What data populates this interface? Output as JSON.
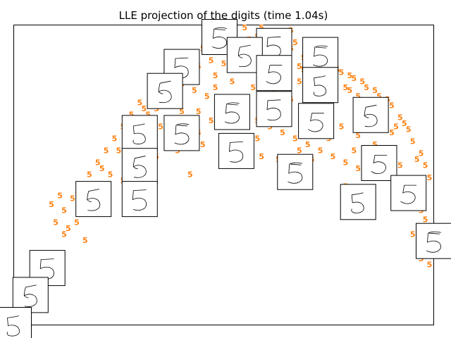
{
  "chart_data": {
    "type": "scatter",
    "title": "LLE projection of the digits (time 1.04s)",
    "xlabel": "",
    "ylabel": "",
    "xlim": [
      0,
      1
    ],
    "ylim": [
      0,
      1
    ],
    "grid": false,
    "axes_ticks": false,
    "marker": "text",
    "marker_label": "5",
    "marker_color": "#ff7f0e",
    "series": [
      {
        "points": [
          [
            0.49,
            0.98
          ],
          [
            0.52,
            0.97
          ],
          [
            0.55,
            0.99
          ],
          [
            0.58,
            0.96
          ],
          [
            0.61,
            0.97
          ],
          [
            0.64,
            0.95
          ],
          [
            0.67,
            0.94
          ],
          [
            0.51,
            0.94
          ],
          [
            0.54,
            0.93
          ],
          [
            0.57,
            0.92
          ],
          [
            0.6,
            0.91
          ],
          [
            0.63,
            0.9
          ],
          [
            0.66,
            0.92
          ],
          [
            0.69,
            0.89
          ],
          [
            0.72,
            0.88
          ],
          [
            0.7,
            0.91
          ],
          [
            0.75,
            0.86
          ],
          [
            0.78,
            0.84
          ],
          [
            0.81,
            0.82
          ],
          [
            0.84,
            0.79
          ],
          [
            0.87,
            0.76
          ],
          [
            0.9,
            0.73
          ],
          [
            0.92,
            0.69
          ],
          [
            0.94,
            0.65
          ],
          [
            0.95,
            0.61
          ],
          [
            0.97,
            0.57
          ],
          [
            0.98,
            0.53
          ],
          [
            0.99,
            0.49
          ],
          [
            0.96,
            0.55
          ],
          [
            0.93,
            0.67
          ],
          [
            0.89,
            0.75
          ],
          [
            0.86,
            0.78
          ],
          [
            0.83,
            0.81
          ],
          [
            0.8,
            0.83
          ],
          [
            0.77,
            0.85
          ],
          [
            0.74,
            0.87
          ],
          [
            0.45,
            0.92
          ],
          [
            0.42,
            0.89
          ],
          [
            0.47,
            0.88
          ],
          [
            0.5,
            0.87
          ],
          [
            0.53,
            0.86
          ],
          [
            0.56,
            0.85
          ],
          [
            0.59,
            0.84
          ],
          [
            0.62,
            0.83
          ],
          [
            0.65,
            0.82
          ],
          [
            0.68,
            0.81
          ],
          [
            0.71,
            0.8
          ],
          [
            0.73,
            0.83
          ],
          [
            0.76,
            0.8
          ],
          [
            0.79,
            0.79
          ],
          [
            0.82,
            0.76
          ],
          [
            0.85,
            0.73
          ],
          [
            0.88,
            0.7
          ],
          [
            0.91,
            0.66
          ],
          [
            0.38,
            0.85
          ],
          [
            0.35,
            0.82
          ],
          [
            0.4,
            0.8
          ],
          [
            0.43,
            0.78
          ],
          [
            0.46,
            0.76
          ],
          [
            0.49,
            0.74
          ],
          [
            0.52,
            0.72
          ],
          [
            0.55,
            0.7
          ],
          [
            0.58,
            0.68
          ],
          [
            0.61,
            0.66
          ],
          [
            0.64,
            0.64
          ],
          [
            0.67,
            0.62
          ],
          [
            0.7,
            0.6
          ],
          [
            0.73,
            0.58
          ],
          [
            0.76,
            0.56
          ],
          [
            0.79,
            0.54
          ],
          [
            0.82,
            0.52
          ],
          [
            0.85,
            0.5
          ],
          [
            0.33,
            0.78
          ],
          [
            0.3,
            0.74
          ],
          [
            0.32,
            0.7
          ],
          [
            0.35,
            0.66
          ],
          [
            0.38,
            0.62
          ],
          [
            0.41,
            0.6
          ],
          [
            0.44,
            0.64
          ],
          [
            0.47,
            0.68
          ],
          [
            0.5,
            0.66
          ],
          [
            0.53,
            0.62
          ],
          [
            0.56,
            0.58
          ],
          [
            0.59,
            0.56
          ],
          [
            0.28,
            0.7
          ],
          [
            0.26,
            0.66
          ],
          [
            0.24,
            0.62
          ],
          [
            0.22,
            0.58
          ],
          [
            0.2,
            0.54
          ],
          [
            0.18,
            0.5
          ],
          [
            0.16,
            0.46
          ],
          [
            0.14,
            0.42
          ],
          [
            0.12,
            0.38
          ],
          [
            0.1,
            0.34
          ],
          [
            0.17,
            0.44
          ],
          [
            0.21,
            0.52
          ],
          [
            0.25,
            0.58
          ],
          [
            0.29,
            0.64
          ],
          [
            0.31,
            0.72
          ],
          [
            0.36,
            0.76
          ],
          [
            0.4,
            0.71
          ],
          [
            0.44,
            0.71
          ],
          [
            0.48,
            0.79
          ],
          [
            0.52,
            0.81
          ],
          [
            0.57,
            0.79
          ],
          [
            0.62,
            0.77
          ],
          [
            0.66,
            0.75
          ],
          [
            0.7,
            0.71
          ],
          [
            0.74,
            0.69
          ],
          [
            0.78,
            0.66
          ],
          [
            0.82,
            0.63
          ],
          [
            0.86,
            0.6
          ],
          [
            0.89,
            0.56
          ],
          [
            0.92,
            0.53
          ],
          [
            0.63,
            0.55
          ],
          [
            0.71,
            0.55
          ],
          [
            0.79,
            0.46
          ],
          [
            0.84,
            0.44
          ],
          [
            0.93,
            0.44
          ],
          [
            0.94,
            0.4
          ],
          [
            0.97,
            0.38
          ],
          [
            0.98,
            0.35
          ],
          [
            0.95,
            0.3
          ],
          [
            0.97,
            0.22
          ],
          [
            0.99,
            0.2
          ],
          [
            0.88,
            0.5
          ],
          [
            0.91,
            0.47
          ],
          [
            0.54,
            0.56
          ],
          [
            0.42,
            0.5
          ],
          [
            0.3,
            0.54
          ],
          [
            0.26,
            0.48
          ],
          [
            0.09,
            0.4
          ],
          [
            0.11,
            0.43
          ],
          [
            0.12,
            0.3
          ],
          [
            0.15,
            0.34
          ],
          [
            0.17,
            0.28
          ],
          [
            0.16,
            0.46
          ],
          [
            0.06,
            0.19
          ],
          [
            0.07,
            0.22
          ],
          [
            0.13,
            0.32
          ],
          [
            0.19,
            0.43
          ],
          [
            0.23,
            0.5
          ],
          [
            0.27,
            0.56
          ],
          [
            0.34,
            0.56
          ],
          [
            0.39,
            0.58
          ],
          [
            0.45,
            0.6
          ],
          [
            0.58,
            0.62
          ],
          [
            0.68,
            0.58
          ],
          [
            0.75,
            0.62
          ],
          [
            0.81,
            0.58
          ],
          [
            0.56,
            0.95
          ],
          [
            0.6,
            0.93
          ],
          [
            0.63,
            0.96
          ],
          [
            0.66,
            0.98
          ],
          [
            0.59,
            0.99
          ],
          [
            0.68,
            0.86
          ],
          [
            0.72,
            0.84
          ],
          [
            0.76,
            0.82
          ],
          [
            0.8,
            0.78
          ],
          [
            0.83,
            0.74
          ],
          [
            0.87,
            0.68
          ],
          [
            0.9,
            0.64
          ],
          [
            0.53,
            0.89
          ],
          [
            0.57,
            0.88
          ],
          [
            0.61,
            0.87
          ],
          [
            0.65,
            0.88
          ],
          [
            0.69,
            0.85
          ],
          [
            0.48,
            0.83
          ],
          [
            0.44,
            0.86
          ],
          [
            0.4,
            0.88
          ],
          [
            0.37,
            0.8
          ],
          [
            0.34,
            0.72
          ],
          [
            0.31,
            0.68
          ],
          [
            0.27,
            0.62
          ]
        ]
      }
    ],
    "thumbnails": [
      {
        "x": 0.49,
        "y": 0.96,
        "variant": 1
      },
      {
        "x": 0.62,
        "y": 0.93,
        "variant": 0
      },
      {
        "x": 0.55,
        "y": 0.9,
        "variant": 2
      },
      {
        "x": 0.73,
        "y": 0.9,
        "variant": 1
      },
      {
        "x": 0.4,
        "y": 0.86,
        "variant": 0
      },
      {
        "x": 0.62,
        "y": 0.84,
        "variant": 3
      },
      {
        "x": 0.73,
        "y": 0.8,
        "variant": 4
      },
      {
        "x": 0.36,
        "y": 0.78,
        "variant": 2
      },
      {
        "x": 0.62,
        "y": 0.72,
        "variant": 0
      },
      {
        "x": 0.52,
        "y": 0.71,
        "variant": 1
      },
      {
        "x": 0.72,
        "y": 0.68,
        "variant": 3
      },
      {
        "x": 0.85,
        "y": 0.7,
        "variant": 2
      },
      {
        "x": 0.3,
        "y": 0.64,
        "variant": 4
      },
      {
        "x": 0.4,
        "y": 0.64,
        "variant": 1
      },
      {
        "x": 0.53,
        "y": 0.58,
        "variant": 0
      },
      {
        "x": 0.3,
        "y": 0.53,
        "variant": 2
      },
      {
        "x": 0.87,
        "y": 0.54,
        "variant": 3
      },
      {
        "x": 0.67,
        "y": 0.51,
        "variant": 1
      },
      {
        "x": 0.3,
        "y": 0.42,
        "variant": 0
      },
      {
        "x": 0.19,
        "y": 0.42,
        "variant": 2
      },
      {
        "x": 0.82,
        "y": 0.41,
        "variant": 4
      },
      {
        "x": 0.94,
        "y": 0.44,
        "variant": 3
      },
      {
        "x": 1.0,
        "y": 0.28,
        "variant": 1
      },
      {
        "x": 0.08,
        "y": 0.19,
        "variant": 0
      },
      {
        "x": 0.04,
        "y": 0.1,
        "variant": 2
      },
      {
        "x": 0.0,
        "y": 0.0,
        "variant": 4
      }
    ]
  }
}
